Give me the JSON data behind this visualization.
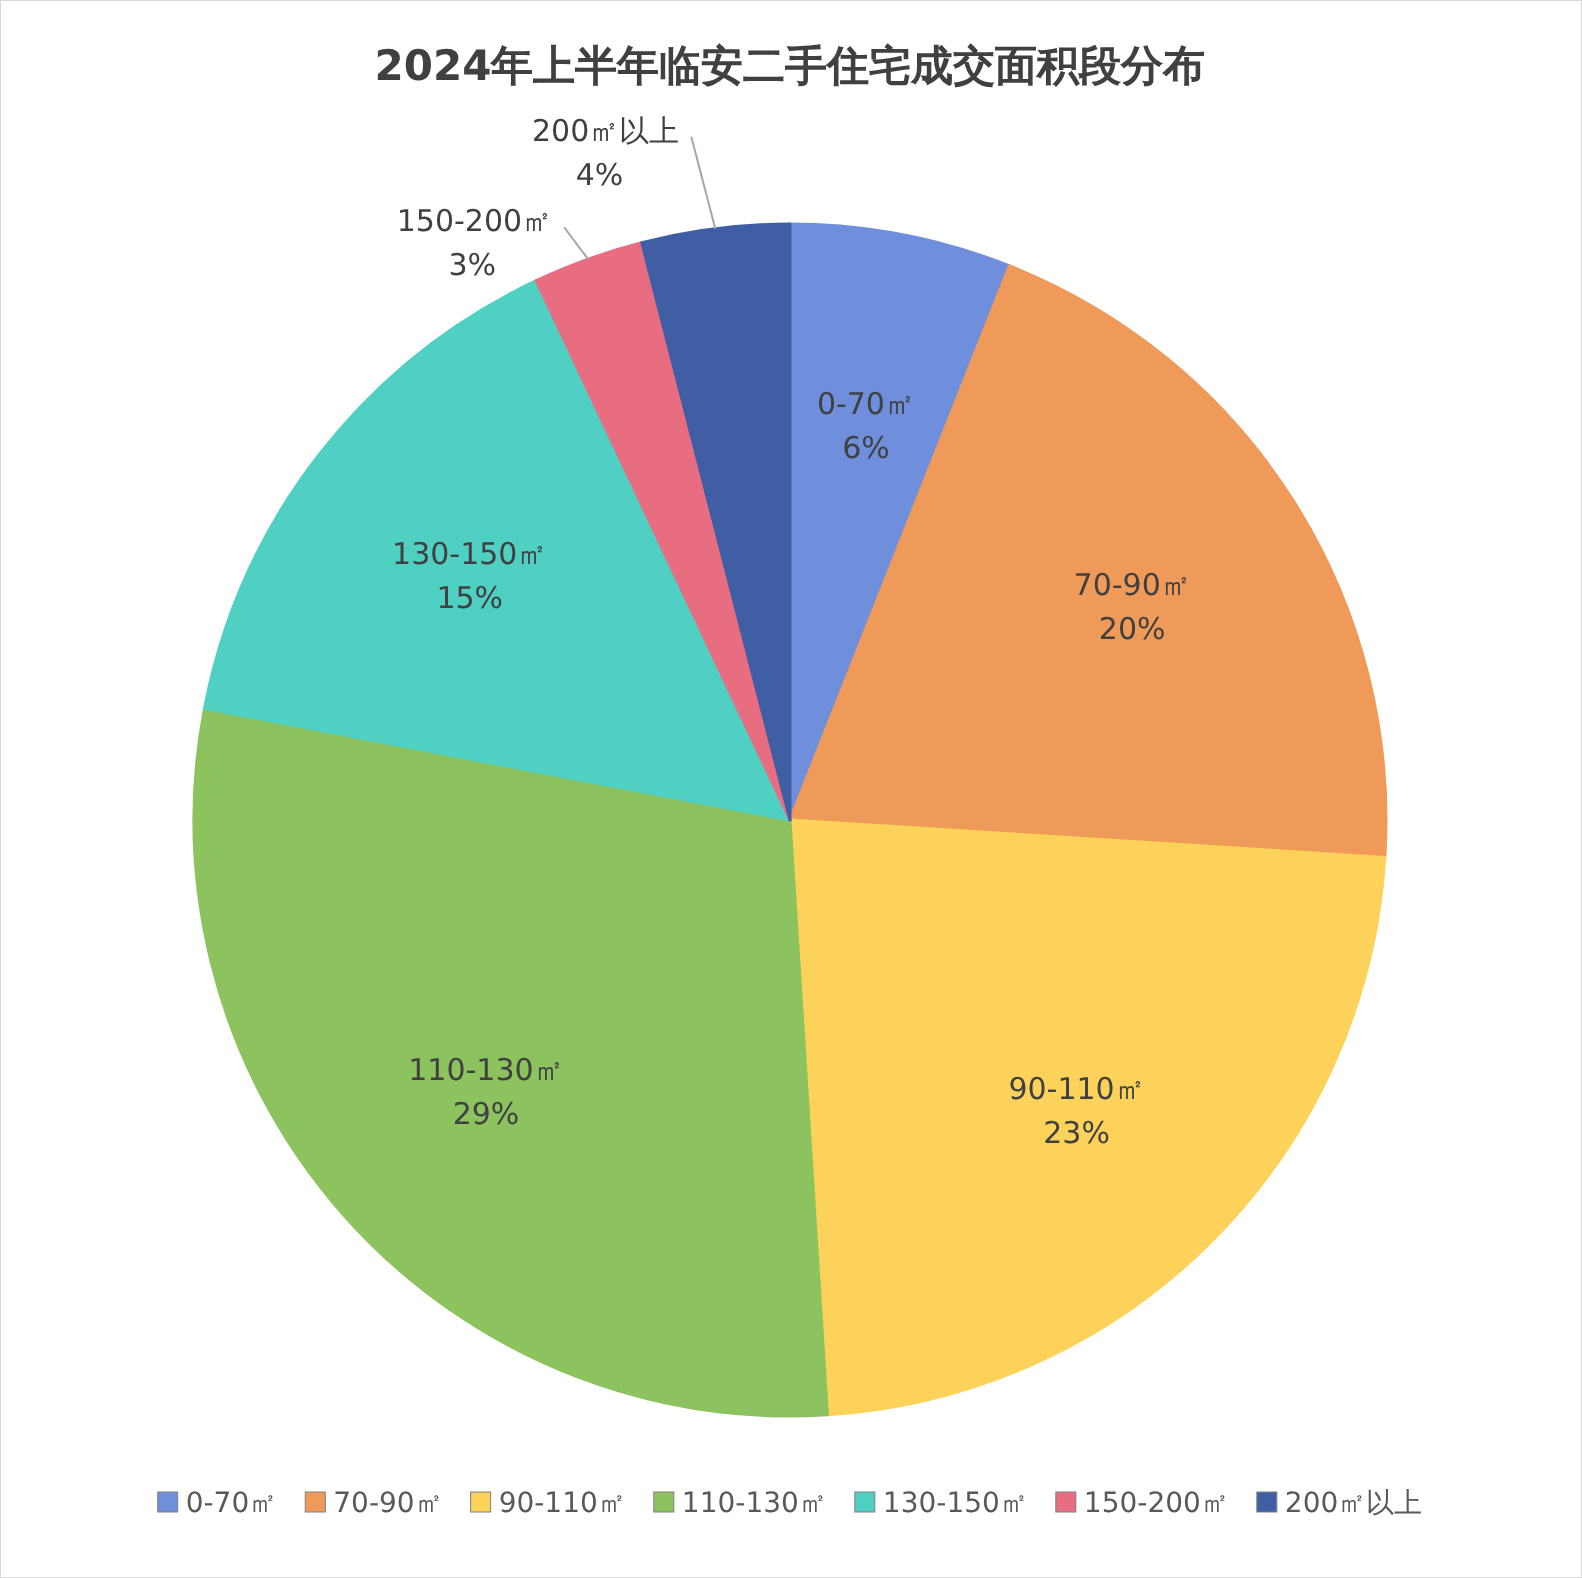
{
  "chart_data": {
    "type": "pie",
    "title": "2024年上半年临安二手住宅成交面积段分布",
    "categories": [
      "0-70㎡",
      "70-90㎡",
      "90-110㎡",
      "110-130㎡",
      "130-150㎡",
      "150-200㎡",
      "200㎡以上"
    ],
    "values": [
      6,
      20,
      23,
      29,
      15,
      3,
      4
    ],
    "colors": [
      "#6f8fdc",
      "#f09a5a",
      "#fdd25a",
      "#8cc35e",
      "#4fd0c3",
      "#e96d80",
      "#3f5ea4"
    ],
    "value_labels": [
      "6%",
      "20%",
      "23%",
      "29%",
      "15%",
      "3%",
      "4%"
    ],
    "legend": "bottom"
  }
}
